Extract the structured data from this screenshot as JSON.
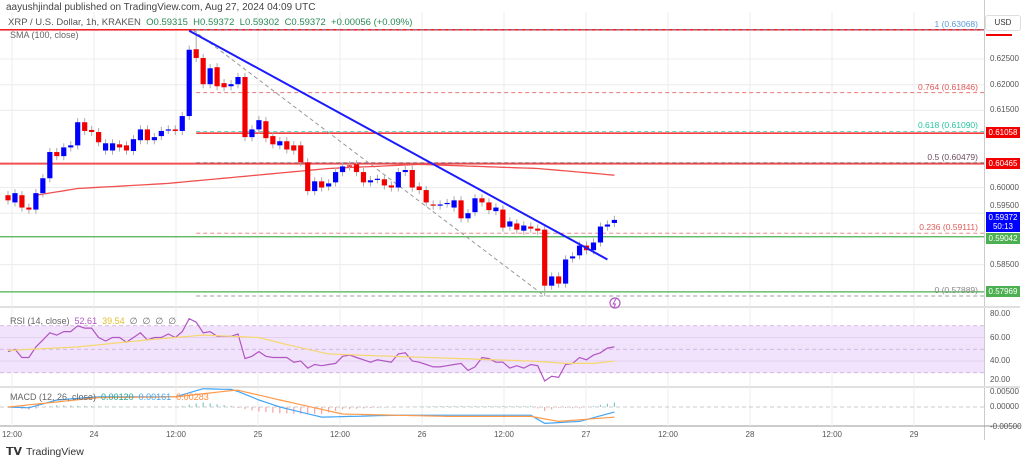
{
  "header": {
    "published": "aayushjindal published on TradingView.com, Aug 27, 2024 04:09 UTC"
  },
  "legend": {
    "symbol": "XRP / U.S. Dollar, 1h, KRAKEN",
    "open": "O0.59315",
    "high": "H0.59372",
    "low": "L0.59302",
    "close": "C0.59372",
    "change": "+0.00056 (+0.09%)",
    "sma_label": "SMA (100, close)"
  },
  "currency_button": "USD",
  "price_axis": {
    "ticks": [
      "0.62500",
      "0.62000",
      "0.61500",
      "0.60000",
      "0.59500",
      "0.58500"
    ],
    "tick_values": [
      0.625,
      0.62,
      0.615,
      0.6,
      0.595,
      0.585
    ],
    "badges": [
      {
        "text": "0.61058",
        "value": 0.61058,
        "color": "#f20000"
      },
      {
        "text": "0.60465",
        "value": 0.60465,
        "color": "#f20000"
      },
      {
        "text": "0.59372",
        "sub": "50:13",
        "value": 0.59372,
        "color": "#0000ff"
      },
      {
        "text": "0.59042",
        "value": 0.59042,
        "color": "#4caf50"
      },
      {
        "text": "0.57969",
        "value": 0.57969,
        "color": "#4caf50"
      }
    ]
  },
  "time_axis": {
    "labels": [
      "12:00",
      "24",
      "12:00",
      "25",
      "12:00",
      "26",
      "12:00",
      "27",
      "12:00",
      "28",
      "12:00",
      "29"
    ]
  },
  "footer": {
    "brand": "TradingView"
  },
  "colors": {
    "up": "#0000ff",
    "down": "#f20000",
    "sma": "#f05050",
    "trendline": "#1a1aff",
    "rsi": "#b255c4",
    "rsi_ma": "#f5d76e",
    "rsi_band": "#f1e3fb",
    "macd": "#42a5f5",
    "signal": "#ff9a4a",
    "hist_up": "#80cbc4",
    "hist_down": "#f7a1a1"
  },
  "chart_data": [
    {
      "type": "candlestick",
      "interval": "1h",
      "first_bar": "Aug 23 13:00",
      "last_bar": "Aug 27 04:00",
      "ylim": [
        0.5775,
        0.6345
      ],
      "grid": true,
      "candles_oc": [
        [
          0.5985,
          0.5975
        ],
        [
          0.5971,
          0.5989
        ],
        [
          0.5985,
          0.5961
        ],
        [
          0.5961,
          0.5957
        ],
        [
          0.5957,
          0.5989
        ],
        [
          0.5989,
          0.6018
        ],
        [
          0.6018,
          0.6069
        ],
        [
          0.6069,
          0.6061
        ],
        [
          0.6061,
          0.6078
        ],
        [
          0.6078,
          0.6082
        ],
        [
          0.6082,
          0.6127
        ],
        [
          0.6127,
          0.611
        ],
        [
          0.6112,
          0.6108
        ],
        [
          0.6108,
          0.6088
        ],
        [
          0.6072,
          0.6086
        ],
        [
          0.6072,
          0.6086
        ],
        [
          0.6084,
          0.6078
        ],
        [
          0.6082,
          0.6072
        ],
        [
          0.6071,
          0.6094
        ],
        [
          0.6092,
          0.6113
        ],
        [
          0.6113,
          0.6092
        ],
        [
          0.6092,
          0.6098
        ],
        [
          0.61,
          0.611
        ],
        [
          0.6112,
          0.6113
        ],
        [
          0.6113,
          0.611
        ],
        [
          0.611,
          0.6139
        ],
        [
          0.6139,
          0.6268
        ],
        [
          0.6269,
          0.6252
        ],
        [
          0.6252,
          0.6201
        ],
        [
          0.6201,
          0.6232
        ],
        [
          0.6234,
          0.6197
        ],
        [
          0.6203,
          0.6195
        ],
        [
          0.6197,
          0.6201
        ],
        [
          0.6201,
          0.6215
        ],
        [
          0.6215,
          0.6098
        ],
        [
          0.6098,
          0.6113
        ],
        [
          0.6113,
          0.6131
        ],
        [
          0.6129,
          0.6096
        ],
        [
          0.61,
          0.6084
        ],
        [
          0.6082,
          0.609
        ],
        [
          0.609,
          0.6074
        ],
        [
          0.6082,
          0.6072
        ],
        [
          0.6082,
          0.6049
        ],
        [
          0.6049,
          0.5993
        ],
        [
          0.5993,
          0.6012
        ],
        [
          0.6012,
          0.6
        ],
        [
          0.6002,
          0.6008
        ],
        [
          0.601,
          0.603
        ],
        [
          0.603,
          0.6041
        ],
        [
          0.6043,
          0.6041
        ],
        [
          0.6045,
          0.603
        ],
        [
          0.603,
          0.601
        ],
        [
          0.601,
          0.6014
        ],
        [
          0.6016,
          0.6017
        ],
        [
          0.6016,
          0.6004
        ],
        [
          0.6004,
          0.6
        ],
        [
          0.6,
          0.603
        ],
        [
          0.603,
          0.6034
        ],
        [
          0.6034,
          0.6
        ],
        [
          0.6002,
          0.5995
        ],
        [
          0.5995,
          0.5971
        ],
        [
          0.5967,
          0.5965
        ],
        [
          0.5965,
          0.5967
        ],
        [
          0.5969,
          0.597
        ],
        [
          0.5961,
          0.5975
        ],
        [
          0.5975,
          0.594
        ],
        [
          0.594,
          0.595
        ],
        [
          0.5952,
          0.5979
        ],
        [
          0.5979,
          0.5971
        ],
        [
          0.5971,
          0.5956
        ],
        [
          0.5954,
          0.5961
        ],
        [
          0.5957,
          0.5922
        ],
        [
          0.5924,
          0.5934
        ],
        [
          0.593,
          0.5918
        ],
        [
          0.5916,
          0.5926
        ],
        [
          0.5924,
          0.592
        ],
        [
          0.592,
          0.5916
        ],
        [
          0.5918,
          0.5809
        ],
        [
          0.5809,
          0.5827
        ],
        [
          0.5827,
          0.5813
        ],
        [
          0.5813,
          0.586
        ],
        [
          0.5862,
          0.5866
        ],
        [
          0.5868,
          0.5887
        ],
        [
          0.5887,
          0.5878
        ],
        [
          0.5878,
          0.5893
        ],
        [
          0.5893,
          0.5924
        ],
        [
          0.5924,
          0.5928
        ],
        [
          0.5931,
          0.5937
        ]
      ],
      "swing_high": 0.63068,
      "swing_low": 0.57889,
      "sma_100": [
        [
          4,
          0.5985
        ],
        [
          10,
          0.5998
        ],
        [
          23,
          0.6008
        ],
        [
          46,
          0.6037
        ],
        [
          59,
          0.6045
        ],
        [
          76,
          0.6037
        ],
        [
          87,
          0.6024
        ]
      ],
      "trendline": [
        [
          26,
          0.6305
        ],
        [
          86,
          0.586
        ]
      ],
      "fib_levels": [
        {
          "label": "1 (0.63068)",
          "value": 0.63068,
          "color": "#5b9bd5"
        },
        {
          "label": "0.764 (0.61846)",
          "value": 0.61846,
          "color": "#e05a5a"
        },
        {
          "label": "0.618 (0.61090)",
          "value": 0.6109,
          "color": "#26c6a0"
        },
        {
          "label": "0.5 (0.60479)",
          "value": 0.60479,
          "color": "#6d4c5e"
        },
        {
          "label": "0.236 (0.59111)",
          "value": 0.59111,
          "color": "#e05a5a"
        },
        {
          "label": "0 (0.57889)",
          "value": 0.57889,
          "color": "#888888"
        }
      ],
      "horizontal_lines": [
        {
          "value": 0.63068,
          "color": "#f20000"
        },
        {
          "value": 0.61058,
          "color": "#f20000",
          "from_bar": 27
        },
        {
          "value": 0.60465,
          "color": "#f05050"
        },
        {
          "value": 0.59042,
          "color": "#4caf50"
        },
        {
          "value": 0.57969,
          "color": "#4caf50"
        }
      ]
    },
    {
      "type": "line",
      "label": "RSI (14, close)",
      "values_text": [
        "52.61",
        "39.54",
        "∅",
        "∅",
        "∅",
        "∅"
      ],
      "ylim": [
        16,
        84
      ],
      "ticks": [
        "80.00",
        "60.00",
        "40.00",
        "20.00"
      ],
      "tick_values": [
        80,
        60,
        40,
        20
      ],
      "band": [
        30,
        70
      ],
      "rsi": [
        48,
        50,
        43,
        43,
        52,
        58,
        64,
        62,
        65,
        65,
        70,
        68,
        68,
        60,
        57,
        60,
        60,
        56,
        60,
        64,
        58,
        60,
        60,
        63,
        60,
        65,
        76,
        73,
        64,
        65,
        61,
        61,
        61,
        63,
        42,
        44,
        48,
        44,
        43,
        43,
        43,
        39,
        40,
        34,
        37,
        36,
        37,
        38,
        44,
        45,
        43,
        41,
        39,
        41,
        40,
        39,
        46,
        47,
        40,
        39,
        37,
        35,
        35,
        36,
        37,
        38,
        32,
        35,
        43,
        42,
        39,
        39,
        34,
        36,
        34,
        37,
        36,
        23,
        27,
        26,
        37,
        38,
        43,
        41,
        45,
        47,
        51,
        52
      ],
      "rsi_ma": [
        [
          0,
          49
        ],
        [
          10,
          52
        ],
        [
          20,
          58
        ],
        [
          28,
          62
        ],
        [
          36,
          60
        ],
        [
          40,
          54
        ],
        [
          46,
          46
        ],
        [
          55,
          44
        ],
        [
          65,
          42
        ],
        [
          75,
          40
        ],
        [
          80,
          38
        ],
        [
          84,
          38
        ],
        [
          87,
          40
        ]
      ]
    },
    {
      "type": "line",
      "label": "MACD (12, 26, close)",
      "values_text": [
        "0.00120",
        "0.00161",
        "0.00283"
      ],
      "ylim": [
        -0.0055,
        0.0057
      ],
      "ticks": [
        "0.00500",
        "0.00000",
        "-0.00500"
      ],
      "tick_values": [
        0.005,
        0,
        -0.005
      ],
      "macd": [
        [
          0,
          0
        ],
        [
          3,
          -0.0002
        ],
        [
          7,
          0.0018
        ],
        [
          13,
          0.0026
        ],
        [
          24,
          0.0026
        ],
        [
          28,
          0.0047
        ],
        [
          32,
          0.0045
        ],
        [
          33,
          0.004
        ],
        [
          36,
          0.0018
        ],
        [
          39,
          0
        ],
        [
          45,
          -0.0026
        ],
        [
          56,
          -0.0021
        ],
        [
          75,
          -0.0021
        ],
        [
          77,
          -0.0042
        ],
        [
          82,
          -0.0037
        ],
        [
          87,
          -0.0013
        ]
      ],
      "signal": [
        [
          0,
          0
        ],
        [
          13,
          0.0024
        ],
        [
          24,
          0.0026
        ],
        [
          32,
          0.0042
        ],
        [
          33,
          0.0043
        ],
        [
          39,
          0.0018
        ],
        [
          48,
          -0.0018
        ],
        [
          63,
          -0.0024
        ],
        [
          75,
          -0.0024
        ],
        [
          79,
          -0.0037
        ],
        [
          87,
          -0.0026
        ]
      ]
    }
  ]
}
